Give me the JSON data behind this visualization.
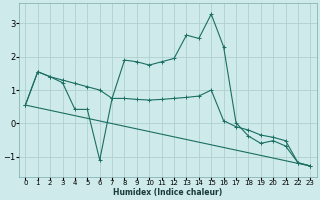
{
  "xlabel": "Humidex (Indice chaleur)",
  "bg_color": "#ceeaea",
  "grid_color": "#b0d0d0",
  "line_color": "#1a6e62",
  "xlim": [
    -0.5,
    23.5
  ],
  "ylim": [
    -1.6,
    3.6
  ],
  "xticks": [
    0,
    1,
    2,
    3,
    4,
    5,
    6,
    7,
    8,
    9,
    10,
    11,
    12,
    13,
    14,
    15,
    16,
    17,
    18,
    19,
    20,
    21,
    22,
    23
  ],
  "yticks": [
    -1,
    0,
    1,
    2,
    3
  ],
  "line1_x": [
    0,
    1,
    2,
    3,
    4,
    5,
    6,
    7,
    8,
    9,
    10,
    11,
    12,
    13,
    14,
    15,
    16,
    17,
    18,
    19,
    20,
    21,
    22,
    23
  ],
  "line1_y": [
    0.55,
    1.55,
    1.4,
    1.3,
    1.2,
    1.1,
    1.0,
    0.75,
    0.75,
    0.72,
    0.7,
    0.72,
    0.75,
    0.78,
    0.82,
    1.0,
    0.08,
    -0.1,
    -0.2,
    -0.35,
    -0.42,
    -0.52,
    -1.18,
    -1.28
  ],
  "line2_x": [
    0,
    1,
    2,
    3,
    4,
    5,
    6,
    7,
    8,
    9,
    10,
    11,
    12,
    13,
    14,
    15,
    16,
    17,
    18,
    19,
    20,
    21,
    22,
    23
  ],
  "line2_y": [
    0.55,
    1.55,
    1.4,
    1.22,
    0.42,
    0.42,
    -1.1,
    0.75,
    1.9,
    1.85,
    1.75,
    1.85,
    1.95,
    2.65,
    2.55,
    3.28,
    2.3,
    0.02,
    -0.38,
    -0.6,
    -0.52,
    -0.68,
    -1.18,
    -1.28
  ],
  "line3_x": [
    0,
    23
  ],
  "line3_y": [
    0.55,
    -1.28
  ]
}
